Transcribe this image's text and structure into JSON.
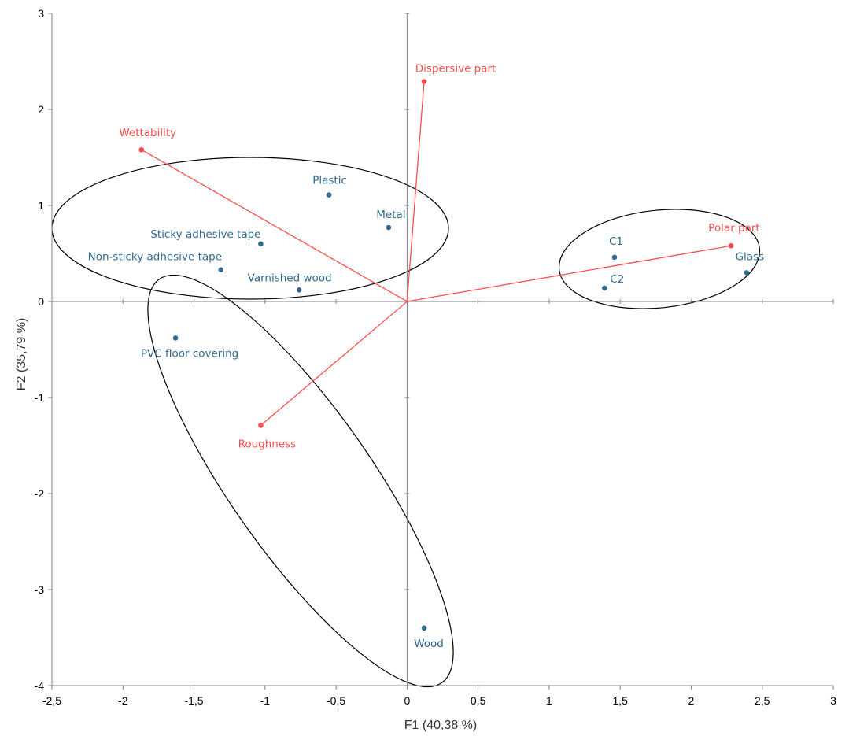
{
  "chart_data": {
    "type": "scatter",
    "xlabel": "F1 (40,38 %)",
    "ylabel": "F2 (35,79 %)",
    "xlim": [
      -2.5,
      3
    ],
    "ylim": [
      -4,
      3
    ],
    "x_ticks": [
      "-2,5",
      "-2",
      "-1,5",
      "-1",
      "-0,5",
      "0",
      "0,5",
      "1",
      "1,5",
      "2",
      "2,5",
      "3"
    ],
    "y_ticks": [
      "-4",
      "-3",
      "-2",
      "-1",
      "0",
      "1",
      "2",
      "3"
    ],
    "grid": false,
    "observations": [
      {
        "label": "Plastic",
        "x": -0.55,
        "y": 1.11
      },
      {
        "label": "Metal",
        "x": -0.13,
        "y": 0.77
      },
      {
        "label": "Sticky adhesive tape",
        "x": -1.03,
        "y": 0.6
      },
      {
        "label": "Non-sticky adhesive tape",
        "x": -1.31,
        "y": 0.33
      },
      {
        "label": "Varnished wood",
        "x": -0.76,
        "y": 0.12
      },
      {
        "label": "PVC floor covering",
        "x": -1.63,
        "y": -0.38
      },
      {
        "label": "Wood",
        "x": 0.12,
        "y": -3.4
      },
      {
        "label": "C1",
        "x": 1.46,
        "y": 0.46
      },
      {
        "label": "C2",
        "x": 1.39,
        "y": 0.14
      },
      {
        "label": "Glass",
        "x": 2.39,
        "y": 0.3
      }
    ],
    "variables": [
      {
        "label": "Dispersive part",
        "x": 0.12,
        "y": 2.29
      },
      {
        "label": "Wettability",
        "x": -1.87,
        "y": 1.58
      },
      {
        "label": "Polar part",
        "x": 2.28,
        "y": 0.58
      },
      {
        "label": "Roughness",
        "x": -1.03,
        "y": -1.29
      }
    ],
    "colors": {
      "observations": "#2f6a8e",
      "variables": "#ff4d4d",
      "ellipses": "#000000",
      "axes": "#808080"
    }
  }
}
